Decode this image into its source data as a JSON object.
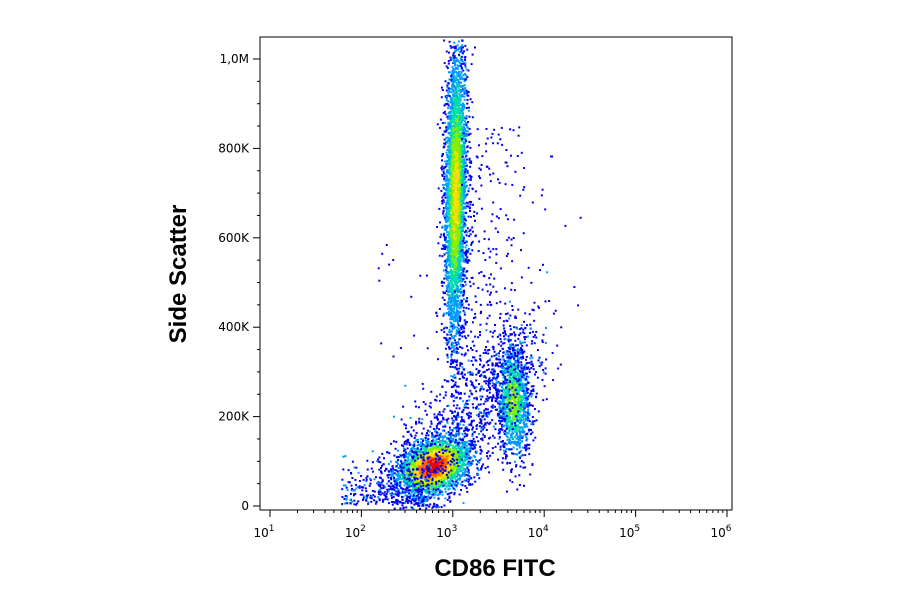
{
  "chart_data": {
    "type": "scatter",
    "style": "density-colored flow cytometry dot plot",
    "xlabel": "CD86 FITC",
    "ylabel": "Side Scatter",
    "x_scale": "log",
    "xlim": [
      10,
      1000000
    ],
    "x_ticks": [
      {
        "base": "10",
        "exp": "1"
      },
      {
        "base": "10",
        "exp": "2"
      },
      {
        "base": "10",
        "exp": "3"
      },
      {
        "base": "10",
        "exp": "4"
      },
      {
        "base": "10",
        "exp": "5"
      },
      {
        "base": "10",
        "exp": "6"
      }
    ],
    "ylim": [
      0,
      1050000
    ],
    "y_ticks": [
      {
        "value": 0,
        "label": "0"
      },
      {
        "value": 200000,
        "label": "200K"
      },
      {
        "value": 400000,
        "label": "400K"
      },
      {
        "value": 600000,
        "label": "600K"
      },
      {
        "value": 800000,
        "label": "800K"
      },
      {
        "value": 1000000,
        "label": "1,0M"
      }
    ],
    "density_colors": [
      "#0000ee",
      "#0099ff",
      "#00ddaa",
      "#88ee00",
      "#ffdd00",
      "#ff6600",
      "#ee0000"
    ],
    "populations": [
      {
        "center_x": 600,
        "center_y": 90000,
        "sx_decades": 0.2,
        "sy": 35000,
        "tilt": 0.25,
        "count": 2600,
        "peak_level": 6
      },
      {
        "center_x": 1050,
        "center_y": 700000,
        "sx_decades": 0.06,
        "sy": 170000,
        "tilt": 0.12,
        "count": 3600,
        "peak_level": 4
      },
      {
        "center_x": 4500,
        "center_y": 240000,
        "sx_decades": 0.09,
        "sy": 65000,
        "tilt": -0.1,
        "count": 1200,
        "peak_level": 3
      }
    ],
    "grid": false,
    "legend": "none"
  }
}
